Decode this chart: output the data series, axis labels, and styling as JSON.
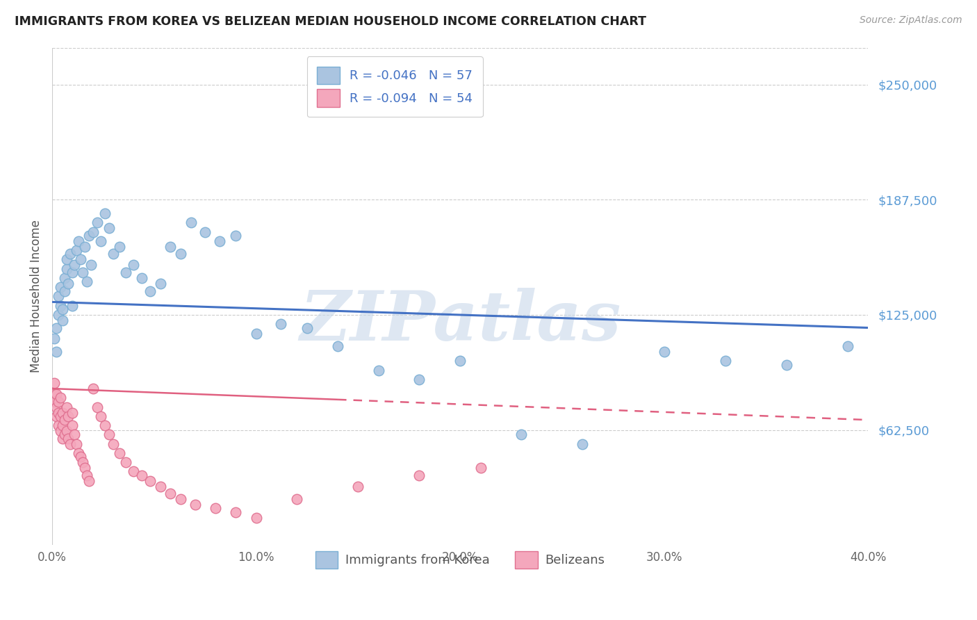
{
  "title": "IMMIGRANTS FROM KOREA VS BELIZEAN MEDIAN HOUSEHOLD INCOME CORRELATION CHART",
  "source": "Source: ZipAtlas.com",
  "ylabel": "Median Household Income",
  "xlim": [
    0.0,
    0.4
  ],
  "ylim": [
    0,
    270000
  ],
  "xtick_labels": [
    "0.0%",
    "10.0%",
    "20.0%",
    "30.0%",
    "40.0%"
  ],
  "xtick_vals": [
    0.0,
    0.1,
    0.2,
    0.3,
    0.4
  ],
  "ytick_labels": [
    "$250,000",
    "$187,500",
    "$125,000",
    "$62,500"
  ],
  "ytick_vals": [
    250000,
    187500,
    125000,
    62500
  ],
  "korea_color": "#aac4e0",
  "korea_edge": "#7aafd4",
  "belizean_color": "#f4a7bc",
  "belizean_edge": "#e07090",
  "korea_R": "-0.046",
  "korea_N": "57",
  "belizean_R": "-0.094",
  "belizean_N": "54",
  "legend_label_korea": "Immigrants from Korea",
  "legend_label_belizean": "Belizeans",
  "trend_korea_color": "#4472c4",
  "trend_belizean_color": "#e06080",
  "watermark": "ZIPatlas",
  "watermark_color": "#c8d8ea",
  "korea_x": [
    0.001,
    0.002,
    0.002,
    0.003,
    0.003,
    0.004,
    0.004,
    0.005,
    0.005,
    0.006,
    0.006,
    0.007,
    0.007,
    0.008,
    0.009,
    0.01,
    0.01,
    0.011,
    0.012,
    0.013,
    0.014,
    0.015,
    0.016,
    0.017,
    0.018,
    0.019,
    0.02,
    0.022,
    0.024,
    0.026,
    0.028,
    0.03,
    0.033,
    0.036,
    0.04,
    0.044,
    0.048,
    0.053,
    0.058,
    0.063,
    0.068,
    0.075,
    0.082,
    0.09,
    0.1,
    0.112,
    0.125,
    0.14,
    0.16,
    0.18,
    0.2,
    0.23,
    0.26,
    0.3,
    0.33,
    0.36,
    0.39
  ],
  "korea_y": [
    112000,
    105000,
    118000,
    125000,
    135000,
    140000,
    130000,
    128000,
    122000,
    145000,
    138000,
    150000,
    155000,
    142000,
    158000,
    148000,
    130000,
    152000,
    160000,
    165000,
    155000,
    148000,
    162000,
    143000,
    168000,
    152000,
    170000,
    175000,
    165000,
    180000,
    172000,
    158000,
    162000,
    148000,
    152000,
    145000,
    138000,
    142000,
    162000,
    158000,
    175000,
    170000,
    165000,
    168000,
    115000,
    120000,
    118000,
    108000,
    95000,
    90000,
    100000,
    60000,
    55000,
    105000,
    100000,
    98000,
    108000
  ],
  "belizean_x": [
    0.001,
    0.001,
    0.001,
    0.002,
    0.002,
    0.002,
    0.003,
    0.003,
    0.003,
    0.004,
    0.004,
    0.004,
    0.005,
    0.005,
    0.005,
    0.006,
    0.006,
    0.007,
    0.007,
    0.008,
    0.008,
    0.009,
    0.01,
    0.01,
    0.011,
    0.012,
    0.013,
    0.014,
    0.015,
    0.016,
    0.017,
    0.018,
    0.02,
    0.022,
    0.024,
    0.026,
    0.028,
    0.03,
    0.033,
    0.036,
    0.04,
    0.044,
    0.048,
    0.053,
    0.058,
    0.063,
    0.07,
    0.08,
    0.09,
    0.1,
    0.12,
    0.15,
    0.18,
    0.21
  ],
  "belizean_y": [
    82000,
    78000,
    88000,
    75000,
    82000,
    70000,
    78000,
    72000,
    65000,
    80000,
    70000,
    62000,
    72000,
    65000,
    58000,
    68000,
    60000,
    75000,
    62000,
    70000,
    58000,
    55000,
    72000,
    65000,
    60000,
    55000,
    50000,
    48000,
    45000,
    42000,
    38000,
    35000,
    85000,
    75000,
    70000,
    65000,
    60000,
    55000,
    50000,
    45000,
    40000,
    38000,
    35000,
    32000,
    28000,
    25000,
    22000,
    20000,
    18000,
    15000,
    25000,
    32000,
    38000,
    42000
  ],
  "trend_korea_x0": 0.0,
  "trend_korea_x1": 0.4,
  "trend_korea_y0": 132000,
  "trend_korea_y1": 118000,
  "trend_belizean_x0": 0.0,
  "trend_belizean_x1": 0.4,
  "trend_belizean_y0": 85000,
  "trend_belizean_y1": 68000,
  "trend_belizean_solid_end": 0.14,
  "background_color": "#ffffff",
  "grid_color": "#cccccc",
  "title_color": "#222222",
  "source_color": "#999999",
  "axis_label_color": "#555555",
  "tick_color": "#666666",
  "right_tick_color": "#5b9bd5"
}
